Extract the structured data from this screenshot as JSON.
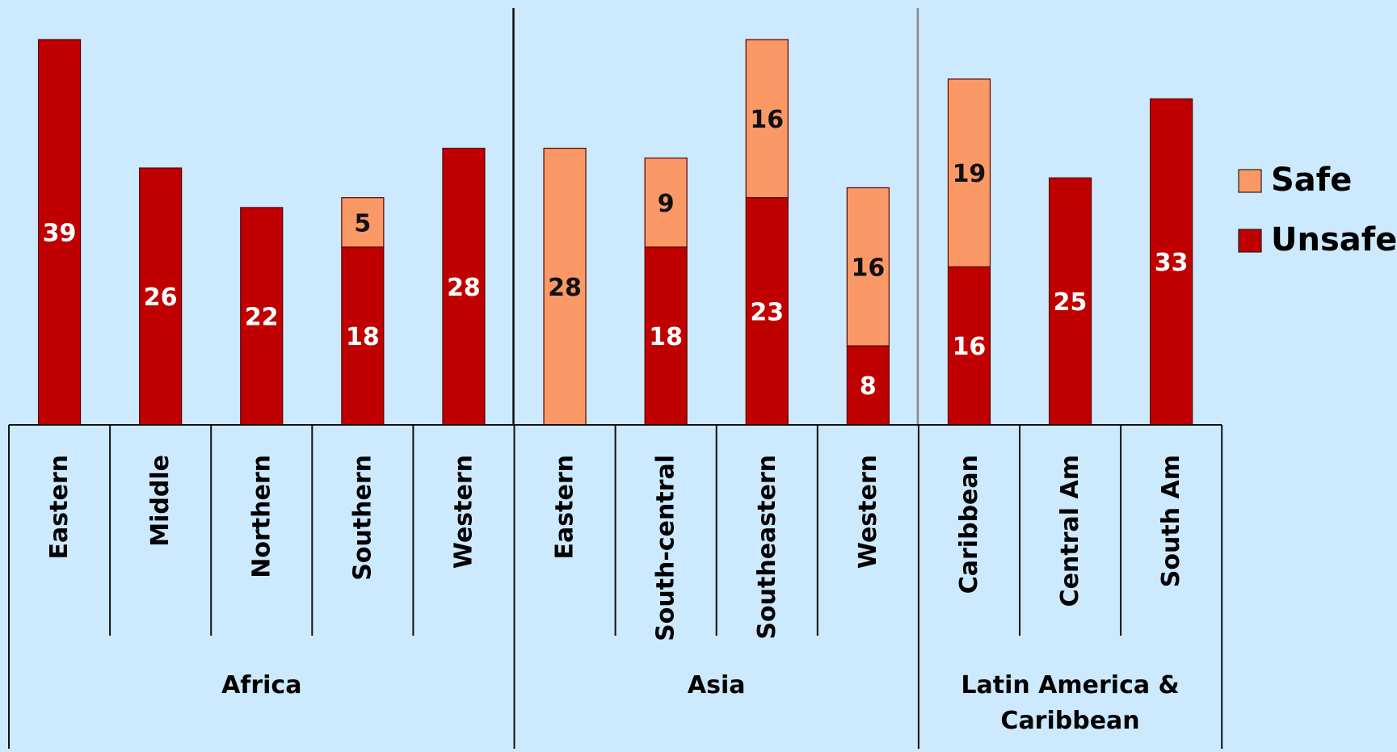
{
  "chart_data": {
    "type": "bar",
    "stacked": true,
    "groups": [
      {
        "name": "Africa",
        "categories": [
          "Eastern",
          "Middle",
          "Northern",
          "Southern",
          "Western"
        ]
      },
      {
        "name": "Asia",
        "categories": [
          "Eastern",
          "South-central",
          "Southeastern",
          "Western"
        ]
      },
      {
        "name": "Latin America & Caribbean",
        "categories": [
          "Caribbean",
          "Central Am",
          "South Am"
        ]
      }
    ],
    "categories": [
      "Eastern",
      "Middle",
      "Northern",
      "Southern",
      "Western",
      "Eastern",
      "South-central",
      "Southeastern",
      "Western",
      "Caribbean",
      "Central Am",
      "South Am"
    ],
    "series": [
      {
        "name": "Unsafe",
        "color": "#c00000",
        "label_color": "#ffffff",
        "values": [
          39,
          26,
          22,
          18,
          28,
          0,
          18,
          23,
          8,
          16,
          25,
          33
        ]
      },
      {
        "name": "Safe",
        "color": "#fa9966",
        "label_color": "#111111",
        "values": [
          0,
          0,
          0,
          5,
          0,
          28,
          9,
          16,
          16,
          19,
          0,
          0
        ]
      }
    ],
    "ylim": [
      0,
      41
    ],
    "grid": false,
    "legend": {
      "position": "right",
      "entries": [
        "Safe",
        "Unsafe"
      ]
    },
    "title": "",
    "xlabel": "",
    "ylabel": "",
    "colors": {
      "background": "#cce9fd",
      "unsafe": "#c00000",
      "safe": "#fa9966"
    }
  }
}
